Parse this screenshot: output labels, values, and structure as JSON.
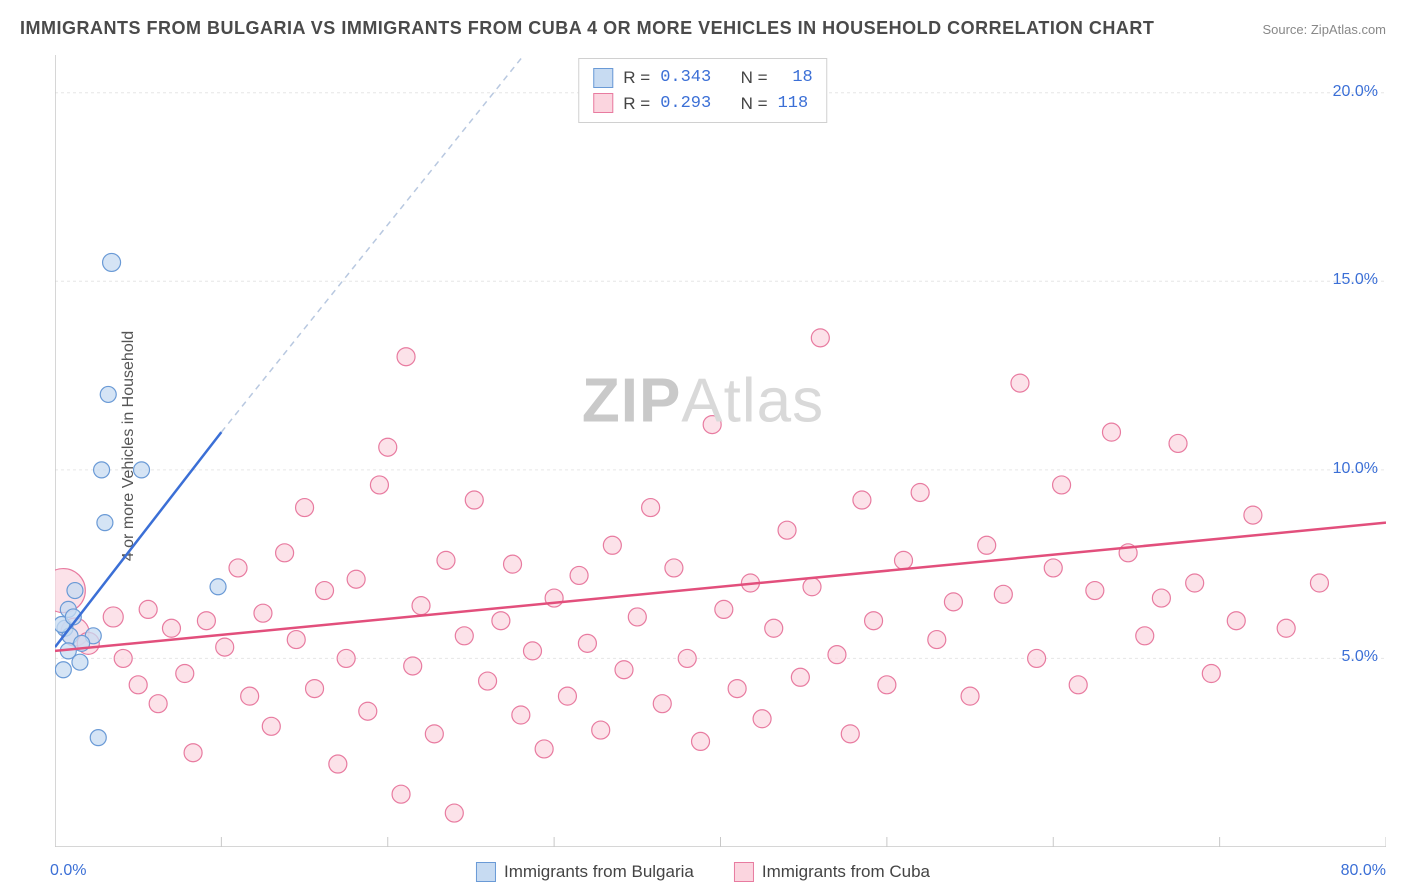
{
  "title": "IMMIGRANTS FROM BULGARIA VS IMMIGRANTS FROM CUBA 4 OR MORE VEHICLES IN HOUSEHOLD CORRELATION CHART",
  "source": "Source: ZipAtlas.com",
  "watermark": "ZIPAtlas",
  "y_axis_label": "4 or more Vehicles in Household",
  "chart": {
    "type": "scatter",
    "background_color": "#ffffff",
    "grid_color": "#e6e6e6",
    "axis_line_color": "#c8c8c8",
    "xlim": [
      0,
      80
    ],
    "ylim": [
      0,
      21
    ],
    "x_ticks": [
      0,
      10,
      20,
      30,
      40,
      50,
      60,
      70,
      80
    ],
    "x_tick_labels": {
      "0": "0.0%",
      "80": "80.0%"
    },
    "y_gridlines": [
      5,
      10,
      15,
      20
    ],
    "y_tick_labels": {
      "5": "5.0%",
      "10": "10.0%",
      "15": "15.0%",
      "20": "20.0%"
    },
    "series": [
      {
        "name": "Immigrants from Bulgaria",
        "marker_fill": "#c7dbf2",
        "marker_stroke": "#6a9ad6",
        "marker_opacity": 0.75,
        "marker_radius": 8,
        "line_color": "#3b6fd6",
        "line_width": 2.5,
        "dash_extension_color": "#b8c8e0",
        "R": "0.343",
        "N": "18",
        "trend": {
          "x1": 0,
          "y1": 5.3,
          "x2": 10,
          "y2": 11.0,
          "dashed_to_x": 30,
          "dashed_to_y": 22
        },
        "points": [
          {
            "x": 3.4,
            "y": 15.5,
            "r": 9
          },
          {
            "x": 3.2,
            "y": 12.0,
            "r": 8
          },
          {
            "x": 2.8,
            "y": 10.0,
            "r": 8
          },
          {
            "x": 5.2,
            "y": 10.0,
            "r": 8
          },
          {
            "x": 3.0,
            "y": 8.6,
            "r": 8
          },
          {
            "x": 1.2,
            "y": 6.8,
            "r": 8
          },
          {
            "x": 9.8,
            "y": 6.9,
            "r": 8
          },
          {
            "x": 0.8,
            "y": 6.3,
            "r": 8
          },
          {
            "x": 0.6,
            "y": 5.8,
            "r": 8
          },
          {
            "x": 0.9,
            "y": 5.6,
            "r": 8
          },
          {
            "x": 2.3,
            "y": 5.6,
            "r": 8
          },
          {
            "x": 1.6,
            "y": 5.4,
            "r": 8
          },
          {
            "x": 0.8,
            "y": 5.2,
            "r": 8
          },
          {
            "x": 1.5,
            "y": 4.9,
            "r": 8
          },
          {
            "x": 0.5,
            "y": 4.7,
            "r": 8
          },
          {
            "x": 2.6,
            "y": 2.9,
            "r": 8
          },
          {
            "x": 0.4,
            "y": 5.9,
            "r": 8
          },
          {
            "x": 1.1,
            "y": 6.1,
            "r": 8
          }
        ]
      },
      {
        "name": "Immigrants from Cuba",
        "marker_fill": "#fbd5df",
        "marker_stroke": "#e87ba0",
        "marker_opacity": 0.7,
        "marker_radius": 9,
        "line_color": "#e24f7c",
        "line_width": 2.5,
        "R": "0.293",
        "N": "118",
        "trend": {
          "x1": 0,
          "y1": 5.2,
          "x2": 80,
          "y2": 8.6
        },
        "points": [
          {
            "x": 0.5,
            "y": 6.8,
            "r": 22
          },
          {
            "x": 1.2,
            "y": 5.7,
            "r": 14
          },
          {
            "x": 2.0,
            "y": 5.4,
            "r": 11
          },
          {
            "x": 3.5,
            "y": 6.1,
            "r": 10
          },
          {
            "x": 4.1,
            "y": 5.0,
            "r": 9
          },
          {
            "x": 5.0,
            "y": 4.3,
            "r": 9
          },
          {
            "x": 5.6,
            "y": 6.3,
            "r": 9
          },
          {
            "x": 6.2,
            "y": 3.8,
            "r": 9
          },
          {
            "x": 7.0,
            "y": 5.8,
            "r": 9
          },
          {
            "x": 7.8,
            "y": 4.6,
            "r": 9
          },
          {
            "x": 8.3,
            "y": 2.5,
            "r": 9
          },
          {
            "x": 9.1,
            "y": 6.0,
            "r": 9
          },
          {
            "x": 10.2,
            "y": 5.3,
            "r": 9
          },
          {
            "x": 11.0,
            "y": 7.4,
            "r": 9
          },
          {
            "x": 11.7,
            "y": 4.0,
            "r": 9
          },
          {
            "x": 12.5,
            "y": 6.2,
            "r": 9
          },
          {
            "x": 13.0,
            "y": 3.2,
            "r": 9
          },
          {
            "x": 13.8,
            "y": 7.8,
            "r": 9
          },
          {
            "x": 14.5,
            "y": 5.5,
            "r": 9
          },
          {
            "x": 15.0,
            "y": 9.0,
            "r": 9
          },
          {
            "x": 15.6,
            "y": 4.2,
            "r": 9
          },
          {
            "x": 16.2,
            "y": 6.8,
            "r": 9
          },
          {
            "x": 17.0,
            "y": 2.2,
            "r": 9
          },
          {
            "x": 17.5,
            "y": 5.0,
            "r": 9
          },
          {
            "x": 18.1,
            "y": 7.1,
            "r": 9
          },
          {
            "x": 18.8,
            "y": 3.6,
            "r": 9
          },
          {
            "x": 19.5,
            "y": 9.6,
            "r": 9
          },
          {
            "x": 20.0,
            "y": 10.6,
            "r": 9
          },
          {
            "x": 20.8,
            "y": 1.4,
            "r": 9
          },
          {
            "x": 21.1,
            "y": 13.0,
            "r": 9
          },
          {
            "x": 21.5,
            "y": 4.8,
            "r": 9
          },
          {
            "x": 22.0,
            "y": 6.4,
            "r": 9
          },
          {
            "x": 22.8,
            "y": 3.0,
            "r": 9
          },
          {
            "x": 23.5,
            "y": 7.6,
            "r": 9
          },
          {
            "x": 24.0,
            "y": 0.9,
            "r": 9
          },
          {
            "x": 24.6,
            "y": 5.6,
            "r": 9
          },
          {
            "x": 25.2,
            "y": 9.2,
            "r": 9
          },
          {
            "x": 26.0,
            "y": 4.4,
            "r": 9
          },
          {
            "x": 26.8,
            "y": 6.0,
            "r": 9
          },
          {
            "x": 27.5,
            "y": 7.5,
            "r": 9
          },
          {
            "x": 28.0,
            "y": 3.5,
            "r": 9
          },
          {
            "x": 28.7,
            "y": 5.2,
            "r": 9
          },
          {
            "x": 29.4,
            "y": 2.6,
            "r": 9
          },
          {
            "x": 30.0,
            "y": 6.6,
            "r": 9
          },
          {
            "x": 30.8,
            "y": 4.0,
            "r": 9
          },
          {
            "x": 31.5,
            "y": 7.2,
            "r": 9
          },
          {
            "x": 32.0,
            "y": 5.4,
            "r": 9
          },
          {
            "x": 32.8,
            "y": 3.1,
            "r": 9
          },
          {
            "x": 33.5,
            "y": 8.0,
            "r": 9
          },
          {
            "x": 34.2,
            "y": 4.7,
            "r": 9
          },
          {
            "x": 35.0,
            "y": 6.1,
            "r": 9
          },
          {
            "x": 35.8,
            "y": 9.0,
            "r": 9
          },
          {
            "x": 36.5,
            "y": 3.8,
            "r": 9
          },
          {
            "x": 37.2,
            "y": 7.4,
            "r": 9
          },
          {
            "x": 38.0,
            "y": 5.0,
            "r": 9
          },
          {
            "x": 38.8,
            "y": 2.8,
            "r": 9
          },
          {
            "x": 39.5,
            "y": 11.2,
            "r": 9
          },
          {
            "x": 40.2,
            "y": 6.3,
            "r": 9
          },
          {
            "x": 41.0,
            "y": 4.2,
            "r": 9
          },
          {
            "x": 41.8,
            "y": 7.0,
            "r": 9
          },
          {
            "x": 42.5,
            "y": 3.4,
            "r": 9
          },
          {
            "x": 43.2,
            "y": 5.8,
            "r": 9
          },
          {
            "x": 44.0,
            "y": 8.4,
            "r": 9
          },
          {
            "x": 44.8,
            "y": 4.5,
            "r": 9
          },
          {
            "x": 45.5,
            "y": 6.9,
            "r": 9
          },
          {
            "x": 46.0,
            "y": 13.5,
            "r": 9
          },
          {
            "x": 47.0,
            "y": 5.1,
            "r": 9
          },
          {
            "x": 47.8,
            "y": 3.0,
            "r": 9
          },
          {
            "x": 48.5,
            "y": 9.2,
            "r": 9
          },
          {
            "x": 49.2,
            "y": 6.0,
            "r": 9
          },
          {
            "x": 50.0,
            "y": 4.3,
            "r": 9
          },
          {
            "x": 51.0,
            "y": 7.6,
            "r": 9
          },
          {
            "x": 52.0,
            "y": 9.4,
            "r": 9
          },
          {
            "x": 53.0,
            "y": 5.5,
            "r": 9
          },
          {
            "x": 54.0,
            "y": 6.5,
            "r": 9
          },
          {
            "x": 55.0,
            "y": 4.0,
            "r": 9
          },
          {
            "x": 56.0,
            "y": 8.0,
            "r": 9
          },
          {
            "x": 57.0,
            "y": 6.7,
            "r": 9
          },
          {
            "x": 58.0,
            "y": 12.3,
            "r": 9
          },
          {
            "x": 59.0,
            "y": 5.0,
            "r": 9
          },
          {
            "x": 60.0,
            "y": 7.4,
            "r": 9
          },
          {
            "x": 60.5,
            "y": 9.6,
            "r": 9
          },
          {
            "x": 61.5,
            "y": 4.3,
            "r": 9
          },
          {
            "x": 62.5,
            "y": 6.8,
            "r": 9
          },
          {
            "x": 63.5,
            "y": 11.0,
            "r": 9
          },
          {
            "x": 64.5,
            "y": 7.8,
            "r": 9
          },
          {
            "x": 65.5,
            "y": 5.6,
            "r": 9
          },
          {
            "x": 66.5,
            "y": 6.6,
            "r": 9
          },
          {
            "x": 67.5,
            "y": 10.7,
            "r": 9
          },
          {
            "x": 68.5,
            "y": 7.0,
            "r": 9
          },
          {
            "x": 69.5,
            "y": 4.6,
            "r": 9
          },
          {
            "x": 71.0,
            "y": 6.0,
            "r": 9
          },
          {
            "x": 72.0,
            "y": 8.8,
            "r": 9
          },
          {
            "x": 74.0,
            "y": 5.8,
            "r": 9
          },
          {
            "x": 76.0,
            "y": 7.0,
            "r": 9
          }
        ]
      }
    ]
  },
  "stats_labels": {
    "R": "R =",
    "N": "N ="
  },
  "legend": {
    "series1": "Immigrants from Bulgaria",
    "series2": "Immigrants from Cuba"
  }
}
